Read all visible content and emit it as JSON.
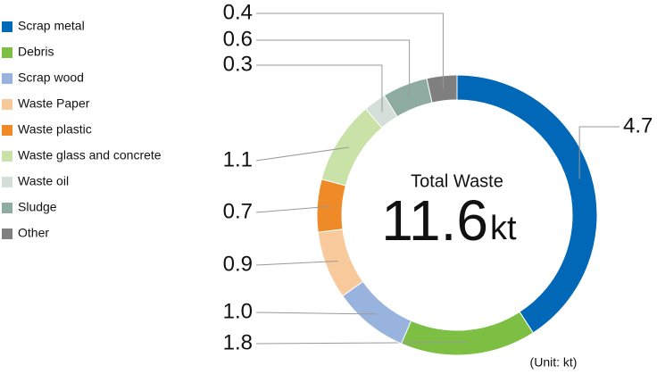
{
  "chart_data": {
    "type": "donut",
    "categories": [
      "Scrap metal",
      "Debris",
      "Scrap wood",
      "Waste Paper",
      "Waste plastic",
      "Waste glass and concrete",
      "Waste oil",
      "Sludge",
      "Other"
    ],
    "values": [
      4.7,
      1.8,
      1.0,
      0.9,
      0.7,
      1.1,
      0.3,
      0.6,
      0.4
    ],
    "value_labels": [
      "4.7",
      "1.8",
      "1.0",
      "0.9",
      "0.7",
      "1.1",
      "0.3",
      "0.6",
      "0.4"
    ],
    "colors": [
      "#0068b7",
      "#7cbf42",
      "#98b4de",
      "#f8c99b",
      "#ee8a27",
      "#c9e2a7",
      "#d5dfd9",
      "#8eaca2",
      "#7f7f7f"
    ],
    "center_label": "Total Waste",
    "total": 11.6,
    "total_unit": "kt",
    "unit_note": "(Unit: kt)"
  }
}
